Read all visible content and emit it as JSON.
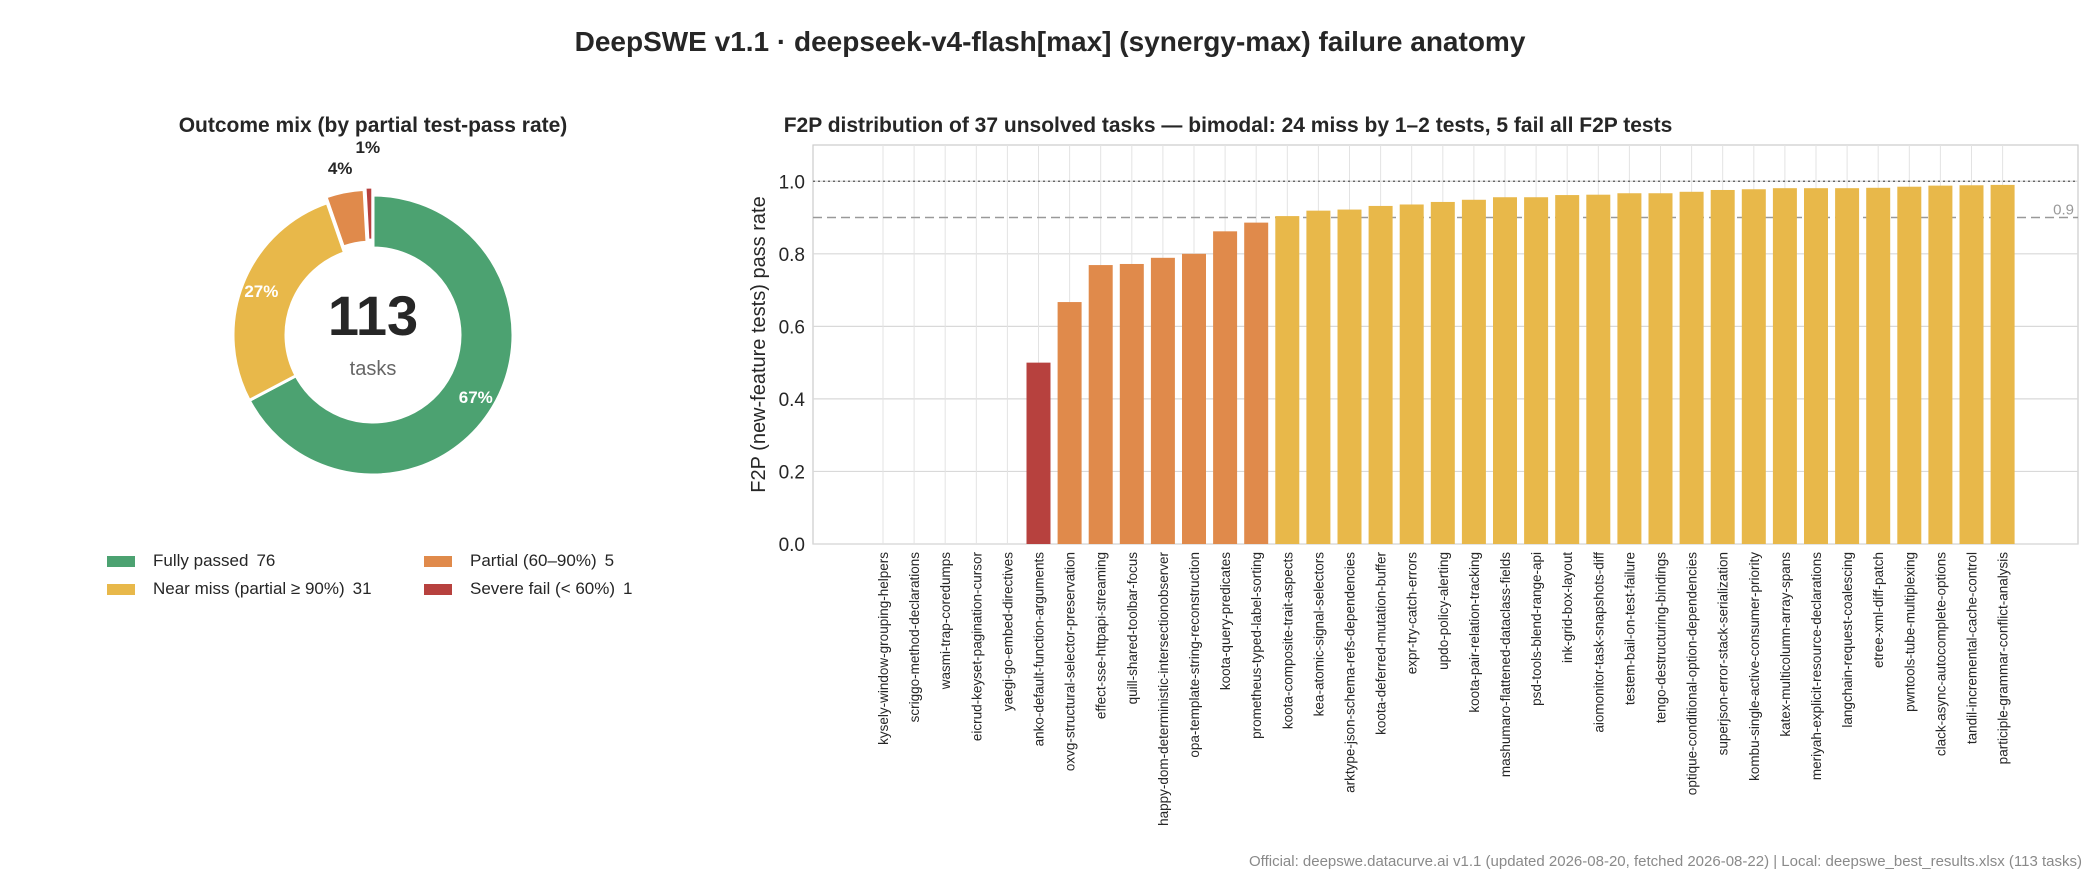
{
  "page_title": "DeepSWE v1.1 · deepseek-v4-flash[max] (synergy-max) failure anatomy",
  "footer": "Official: deepswe.datacurve.ai v1.1 (updated 2026-08-20, fetched 2026-08-22) | Local: deepswe_best_results.xlsx (113 tasks)",
  "colors": {
    "fully_passed": "#4ca271",
    "near_miss": "#e8b84a",
    "partial": "#e08a4b",
    "severe_fail": "#b7413e"
  },
  "chart_data": [
    {
      "type": "pie",
      "title": "Outcome mix (by partial test-pass rate)",
      "center_value": "113",
      "center_label": "tasks",
      "slices": [
        {
          "name": "Fully passed",
          "value": 76,
          "percent_label": "67%",
          "color": "#4ca271"
        },
        {
          "name": "Near miss (partial ≥ 90%)",
          "value": 31,
          "percent_label": "27%",
          "color": "#e8b84a"
        },
        {
          "name": "Partial (60–90%)",
          "value": 5,
          "percent_label": "4%",
          "color": "#e08a4b"
        },
        {
          "name": "Severe fail (< 60%)",
          "value": 1,
          "percent_label": "1%",
          "color": "#b7413e"
        }
      ],
      "legend": [
        {
          "label": "Fully passed",
          "count": "76",
          "color": "#4ca271"
        },
        {
          "label": "Near miss (partial ≥ 90%)",
          "count": "31",
          "color": "#e8b84a"
        },
        {
          "label": "Partial (60–90%)",
          "count": "5",
          "color": "#e08a4b"
        },
        {
          "label": "Severe fail (< 60%)",
          "count": "1",
          "color": "#b7413e"
        }
      ],
      "legend_position": "below"
    },
    {
      "type": "bar",
      "title": "F2P distribution of 37 unsolved tasks — bimodal: 24 miss by 1–2 tests, 5 fail all F2P tests",
      "xlabel": "",
      "ylabel": "F2P (new-feature tests) pass rate",
      "ylim": [
        0,
        1.1
      ],
      "yticks": [
        "0.0",
        "0.2",
        "0.4",
        "0.6",
        "0.8",
        "1.0"
      ],
      "threshold_label": "0.9",
      "threshold_value": 0.9,
      "reference_line": 1.0,
      "grid": true,
      "categories": [
        "kysely-window-grouping-helpers",
        "scriggo-method-declarations",
        "wasmi-trap-coredumps",
        "eicrud-keyset-pagination-cursor",
        "yaegi-go-embed-directives",
        "anko-default-function-arguments",
        "oxvg-structural-selector-preservation",
        "effect-sse-httpapi-streaming",
        "quill-shared-toolbar-focus",
        "happy-dom-deterministic-intersectionobserver",
        "opa-template-string-reconstruction",
        "koota-query-predicates",
        "prometheus-typed-label-sorting",
        "koota-composite-trait-aspects",
        "kea-atomic-signal-selectors",
        "arktype-json-schema-refs-dependencies",
        "koota-deferred-mutation-buffer",
        "expr-try-catch-errors",
        "updo-policy-alerting",
        "koota-pair-relation-tracking",
        "mashumaro-flattened-dataclass-fields",
        "psd-tools-blend-range-api",
        "ink-grid-box-layout",
        "aiomonitor-task-snapshots-diff",
        "testem-bail-on-test-failure",
        "tengo-destructuring-bindings",
        "optique-conditional-option-dependencies",
        "superjson-error-stack-serialization",
        "kombu-single-active-consumer-priority",
        "katex-multicolumn-array-spans",
        "meriyah-explicit-resource-declarations",
        "langchain-request-coalescing",
        "etree-xml-diff-patch",
        "pwntools-tube-multiplexing",
        "clack-async-autocomplete-options",
        "tandil-incremental-cache-control",
        "participle-grammar-conflict-analysis"
      ],
      "values": [
        0,
        0,
        0,
        0,
        0,
        0.5,
        0.667,
        0.769,
        0.772,
        0.789,
        0.8,
        0.862,
        0.886,
        0.904,
        0.919,
        0.922,
        0.932,
        0.936,
        0.943,
        0.949,
        0.956,
        0.956,
        0.962,
        0.963,
        0.967,
        0.967,
        0.971,
        0.976,
        0.978,
        0.981,
        0.981,
        0.981,
        0.982,
        0.985,
        0.988,
        0.989,
        0.99
      ]
    }
  ]
}
